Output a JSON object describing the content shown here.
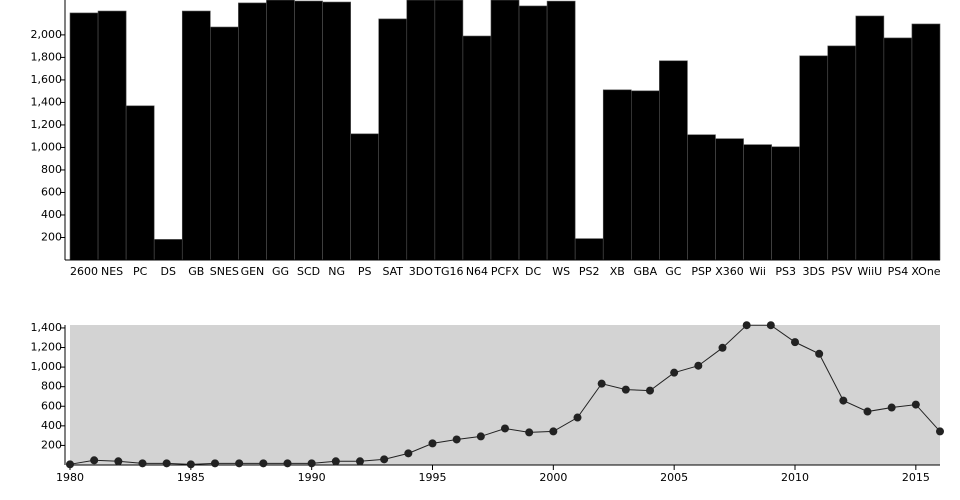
{
  "chart_data": [
    {
      "type": "bar",
      "categories": [
        "2600",
        "NES",
        "PC",
        "DS",
        "GB",
        "SNES",
        "GEN",
        "GG",
        "SCD",
        "NG",
        "PS",
        "SAT",
        "3DO",
        "TG16",
        "N64",
        "PCFX",
        "DC",
        "WS",
        "PS2",
        "XB",
        "GBA",
        "GC",
        "PSP",
        "X360",
        "Wii",
        "PS3",
        "3DS",
        "PSV",
        "WiiU",
        "PS4",
        "XOne"
      ],
      "values": [
        2195,
        2212,
        1370,
        183,
        2212,
        2070,
        2284,
        2400,
        2301,
        2292,
        1121,
        2142,
        2350,
        2350,
        1990,
        2400,
        2257,
        2300,
        190,
        1512,
        1503,
        1770,
        1113,
        1078,
        1025,
        1006,
        1814,
        1902,
        2168,
        1973,
        2097
      ],
      "color": "#000000",
      "ylim": [
        0,
        2310
      ],
      "yticks": [
        {
          "value": 200,
          "label": "200"
        },
        {
          "value": 400,
          "label": "400"
        },
        {
          "value": 600,
          "label": "600"
        },
        {
          "value": 800,
          "label": "800"
        },
        {
          "value": 1000,
          "label": "1,000"
        },
        {
          "value": 1200,
          "label": "1,200"
        },
        {
          "value": 1400,
          "label": "1,400"
        },
        {
          "value": 1600,
          "label": "1,600"
        },
        {
          "value": 1800,
          "label": "1,800"
        },
        {
          "value": 2000,
          "label": "2,000"
        }
      ]
    },
    {
      "type": "line",
      "x": [
        1980,
        1981,
        1982,
        1983,
        1984,
        1985,
        1986,
        1987,
        1988,
        1989,
        1990,
        1991,
        1992,
        1993,
        1994,
        1995,
        1996,
        1997,
        1998,
        1999,
        2000,
        2001,
        2002,
        2003,
        2004,
        2005,
        2006,
        2007,
        2008,
        2009,
        2010,
        2011,
        2012,
        2013,
        2014,
        2015,
        2016
      ],
      "values": [
        7,
        48,
        38,
        17,
        17,
        7,
        17,
        17,
        17,
        17,
        17,
        38,
        38,
        58,
        119,
        221,
        261,
        292,
        373,
        333,
        343,
        485,
        831,
        770,
        760,
        943,
        1014,
        1197,
        1428,
        1428,
        1255,
        1136,
        658,
        546,
        587,
        617,
        343
      ],
      "color": "#222222",
      "background": "#d3d3d3",
      "xlim": [
        1980,
        2016
      ],
      "xticks": [
        1980,
        1985,
        1990,
        1995,
        2000,
        2005,
        2010,
        2015
      ],
      "ylim": [
        0,
        1430
      ],
      "yticks": [
        {
          "value": 200,
          "label": "200"
        },
        {
          "value": 400,
          "label": "400"
        },
        {
          "value": 600,
          "label": "600"
        },
        {
          "value": 800,
          "label": "800"
        },
        {
          "value": 1000,
          "label": "1,000"
        },
        {
          "value": 1200,
          "label": "1,200"
        },
        {
          "value": 1400,
          "label": "1,400"
        }
      ]
    }
  ]
}
